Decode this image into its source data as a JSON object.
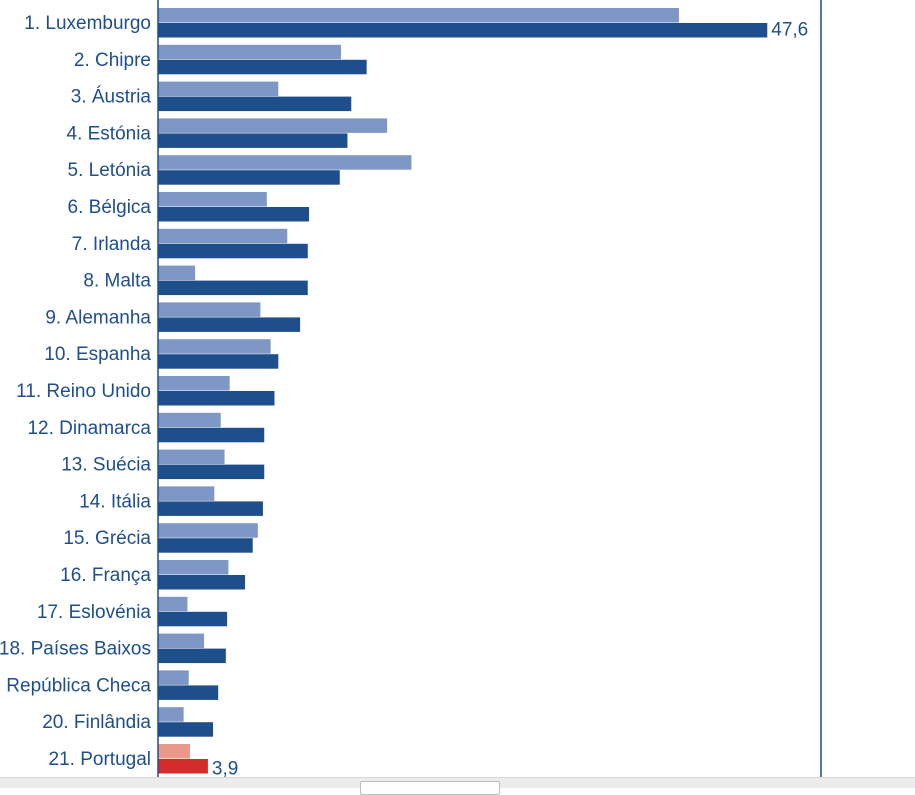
{
  "colors": {
    "light_blue": "#7f97c4",
    "dark_blue": "#1f4e8c",
    "light_red": "#e79a8a",
    "dark_red": "#d42b2b",
    "axis": "#1f4e8c",
    "label_text": "#1f4e8c"
  },
  "chart_data": {
    "type": "bar",
    "orientation": "horizontal",
    "title": "",
    "xlabel": "",
    "ylabel": "",
    "xlim": [
      0,
      52
    ],
    "grid": false,
    "legend": "none",
    "categories": [
      "1. Luxemburgo",
      "2. Chipre",
      "3. Áustria",
      "4. Estónia",
      "5. Letónia",
      "6. Bélgica",
      "7. Irlanda",
      "8. Malta",
      "9. Alemanha",
      "10. Espanha",
      "11. Reino Unido",
      "12. Dinamarca",
      "13. Suécia",
      "14. Itália",
      "15. Grécia",
      "16. França",
      "17. Eslovénia",
      "18. Países Baixos",
      "República Checa",
      "20. Finlândia",
      "21. Portugal"
    ],
    "series": [
      {
        "values": [
          40.7,
          14.3,
          9.4,
          17.9,
          19.8,
          8.5,
          10.1,
          2.9,
          8.0,
          8.8,
          5.6,
          4.9,
          5.2,
          4.4,
          7.8,
          5.5,
          2.3,
          3.6,
          2.4,
          2.0,
          2.5
        ]
      },
      {
        "values": [
          47.6,
          16.3,
          15.1,
          14.8,
          14.2,
          11.8,
          11.7,
          11.7,
          11.1,
          9.4,
          9.1,
          8.3,
          8.3,
          8.2,
          7.4,
          6.8,
          5.4,
          5.3,
          4.7,
          4.3,
          3.9
        ]
      }
    ],
    "highlighted_category": "21. Portugal",
    "data_labels": [
      {
        "category": "1. Luxemburgo",
        "series": 2,
        "text": "47,6"
      },
      {
        "category": "21. Portugal",
        "series": 2,
        "text": "3,9"
      }
    ]
  }
}
